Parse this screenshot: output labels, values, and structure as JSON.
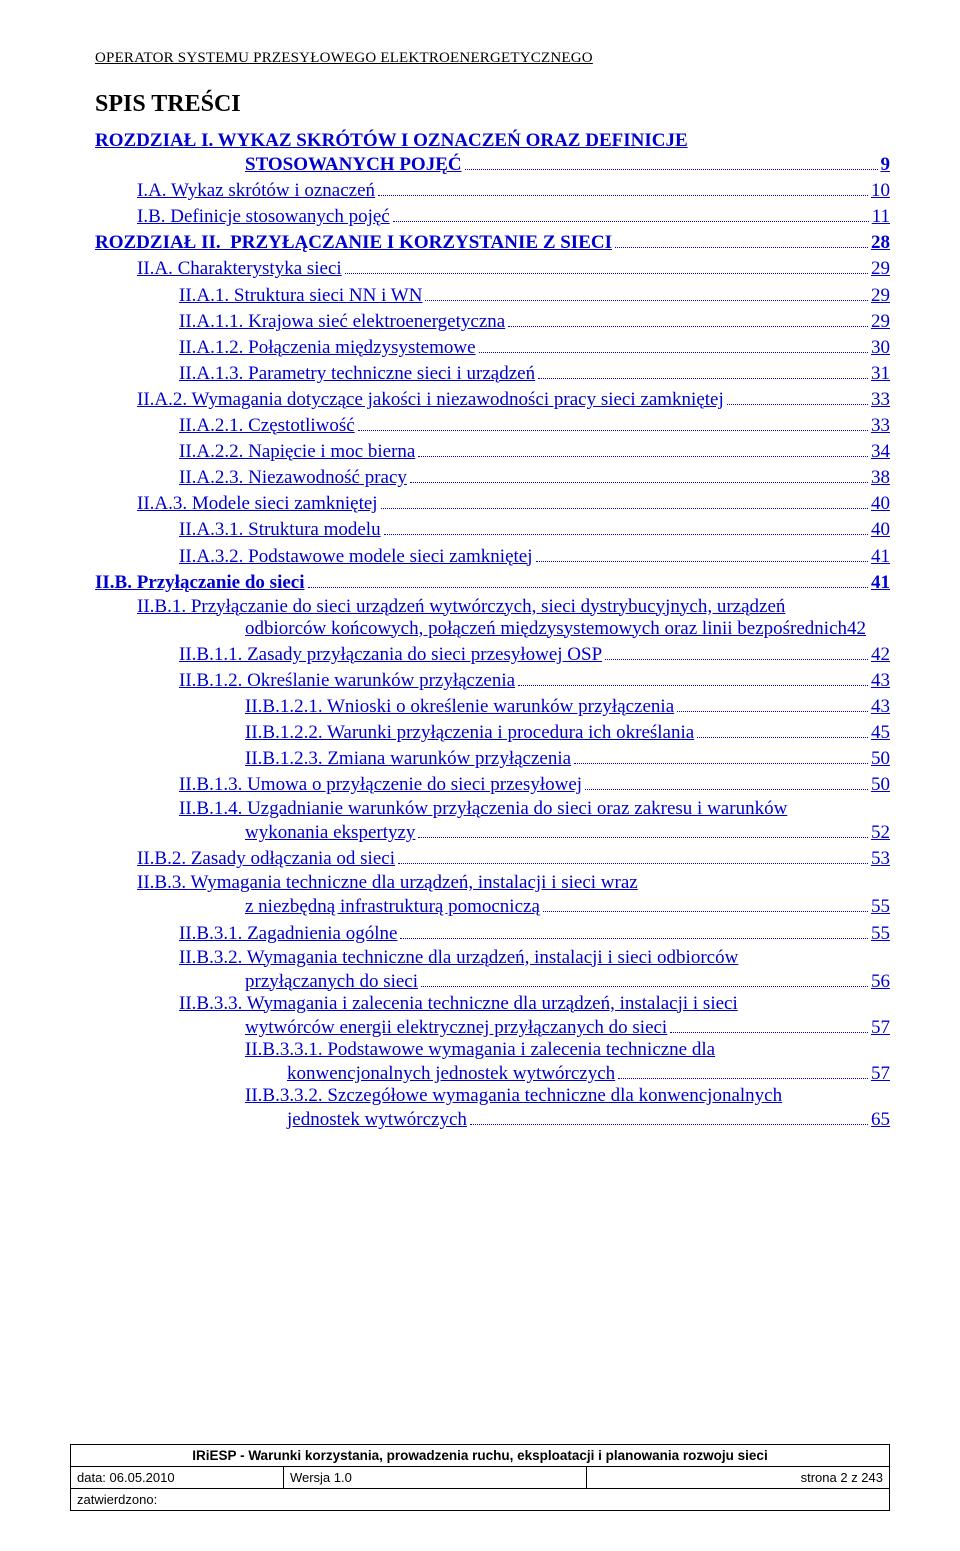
{
  "header": "OPERATOR SYSTEMU PRZESYŁOWEGO ELEKTROENERGETYCZNEGO",
  "toc_title": "SPIS TREŚCI",
  "link_color": "#0000cc",
  "entries": [
    {
      "lvl": 0,
      "bold": true,
      "wrap": true,
      "line1": "ROZDZIAŁ I.  WYKAZ SKRÓTÓW I OZNACZEŃ ORAZ DEFINICJE",
      "line2_indent": 150,
      "line2": "STOSOWANYCH POJĘĆ",
      "page": "9"
    },
    {
      "lvl": 1,
      "text": "I.A. Wykaz skrótów i oznaczeń",
      "page": "10"
    },
    {
      "lvl": 1,
      "text": "I.B. Definicje stosowanych pojęć",
      "page": "11"
    },
    {
      "lvl": 0,
      "bold": true,
      "text": "ROZDZIAŁ II.  PRZYŁĄCZANIE I KORZYSTANIE Z SIECI",
      "page": "28"
    },
    {
      "lvl": 1,
      "text": "II.A. Charakterystyka sieci",
      "page": "29"
    },
    {
      "lvl": 2,
      "text": "II.A.1. Struktura sieci NN i WN",
      "page": "29"
    },
    {
      "lvl": 2,
      "text": "II.A.1.1. Krajowa sieć elektroenergetyczna",
      "page": "29"
    },
    {
      "lvl": 2,
      "text": "II.A.1.2. Połączenia międzysystemowe",
      "page": "30"
    },
    {
      "lvl": 2,
      "text": "II.A.1.3. Parametry techniczne sieci i urządzeń",
      "page": "31"
    },
    {
      "lvl": 1,
      "text": "II.A.2. Wymagania dotyczące jakości i niezawodności pracy sieci zamkniętej",
      "page": "33"
    },
    {
      "lvl": 2,
      "text": "II.A.2.1. Częstotliwość",
      "page": "33"
    },
    {
      "lvl": 2,
      "text": "II.A.2.2. Napięcie i moc bierna",
      "page": "34"
    },
    {
      "lvl": 2,
      "text": "II.A.2.3. Niezawodność pracy",
      "page": "38"
    },
    {
      "lvl": 1,
      "text": "II.A.3. Modele sieci zamkniętej",
      "page": "40"
    },
    {
      "lvl": 2,
      "text": "II.A.3.1. Struktura modelu",
      "page": "40"
    },
    {
      "lvl": 2,
      "text": "II.A.3.2. Podstawowe modele sieci zamkniętej",
      "page": "41"
    },
    {
      "lvl": 0,
      "bold": true,
      "text": "II.B. Przyłączanie do sieci",
      "page": "41"
    },
    {
      "lvl": 1,
      "wrap": true,
      "line1": "II.B.1.   Przyłączanie do sieci urządzeń wytwórczych, sieci dystrybucyjnych, urządzeń",
      "line2_indent": 150,
      "line2": "odbiorców końcowych, połączeń międzysystemowych oraz linii bezpośrednich",
      "page": "42",
      "noleader": true
    },
    {
      "lvl": 2,
      "text": "II.B.1.1. Zasady przyłączania do sieci przesyłowej OSP",
      "page": "42"
    },
    {
      "lvl": 2,
      "text": "II.B.1.2. Określanie warunków przyłączenia",
      "page": "43"
    },
    {
      "lvl": 3,
      "text": "II.B.1.2.1. Wnioski o określenie warunków przyłączenia",
      "page": "43"
    },
    {
      "lvl": 3,
      "text": "II.B.1.2.2. Warunki przyłączenia i procedura ich określania",
      "page": "45"
    },
    {
      "lvl": 3,
      "text": "II.B.1.2.3. Zmiana warunków przyłączenia",
      "page": "50"
    },
    {
      "lvl": 2,
      "text": "II.B.1.3. Umowa o przyłączenie do sieci przesyłowej",
      "page": "50"
    },
    {
      "lvl": 2,
      "wrap": true,
      "line1": "II.B.1.4.  Uzgadnianie warunków przyłączenia do sieci oraz zakresu i warunków",
      "line2_indent": 150,
      "line2": "wykonania ekspertyzy",
      "page": "52"
    },
    {
      "lvl": 1,
      "text": "II.B.2. Zasady odłączania od sieci",
      "page": "53"
    },
    {
      "lvl": 1,
      "wrap": true,
      "line1": "II.B.3.    Wymagania   techniczne   dla   urządzeń,   instalacji   i   sieci   wraz",
      "line2_indent": 150,
      "line2": "z niezbędną infrastrukturą pomocniczą",
      "page": "55"
    },
    {
      "lvl": 2,
      "text": "II.B.3.1. Zagadnienia ogólne",
      "page": "55"
    },
    {
      "lvl": 2,
      "wrap": true,
      "line1": "II.B.3.2.  Wymagania techniczne dla urządzeń, instalacji i sieci odbiorców",
      "line2_indent": 150,
      "line2": "przyłączanych do sieci",
      "page": "56"
    },
    {
      "lvl": 2,
      "wrap": true,
      "line1": "II.B.3.3.  Wymagania i zalecenia techniczne dla urządzeń, instalacji i sieci",
      "line2_indent": 150,
      "line2": "wytwórców energii elektrycznej przyłączanych do sieci",
      "page": "57"
    },
    {
      "lvl": 3,
      "wrap": true,
      "line1": "II.B.3.3.1.   Podstawowe  wymagania  i  zalecenia  techniczne  dla",
      "line2_indent": 192,
      "line2": "konwencjonalnych jednostek wytwórczych",
      "page": "57"
    },
    {
      "lvl": 3,
      "wrap": true,
      "line1": "II.B.3.3.2.   Szczegółowe wymagania techniczne dla konwencjonalnych",
      "line2_indent": 192,
      "line2": "jednostek wytwórczych",
      "page": "65"
    }
  ],
  "footer": {
    "title": "IRiESP - Warunki korzystania, prowadzenia ruchu, eksploatacji i planowania rozwoju sieci",
    "date_label": "data: 06.05.2010",
    "version": "Wersja 1.0",
    "page": "strona 2 z 243",
    "approved": "zatwierdzono:"
  }
}
